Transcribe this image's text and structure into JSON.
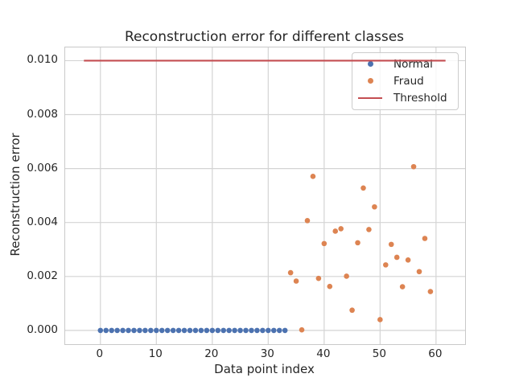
{
  "chart_data": {
    "type": "scatter",
    "title": "Reconstruction error for different classes",
    "xlabel": "Data point index",
    "ylabel": "Reconstruction error",
    "xlim": [
      -6.3,
      65.2
    ],
    "ylim": [
      -0.00051,
      0.01049
    ],
    "xticks": [
      0,
      10,
      20,
      30,
      40,
      50,
      60
    ],
    "xtick_labels": [
      "0",
      "10",
      "20",
      "30",
      "40",
      "50",
      "60"
    ],
    "yticks": [
      0.0,
      0.002,
      0.004,
      0.006,
      0.008,
      0.01
    ],
    "ytick_labels": [
      "0.000",
      "0.002",
      "0.004",
      "0.006",
      "0.008",
      "0.010"
    ],
    "grid": true,
    "legend_position": "upper right",
    "colors": {
      "normal": "#4C72B0",
      "fraud": "#DD8452",
      "threshold": "#C44E52",
      "grid": "#d4d4d4",
      "spine": "#c9c9c9",
      "text": "#262626"
    },
    "series": [
      {
        "name": "Normal",
        "kind": "scatter",
        "color_key": "normal",
        "x": [
          0,
          1,
          2,
          3,
          4,
          5,
          6,
          7,
          8,
          9,
          10,
          11,
          12,
          13,
          14,
          15,
          16,
          17,
          18,
          19,
          20,
          21,
          22,
          23,
          24,
          25,
          26,
          27,
          28,
          29,
          30,
          31,
          32,
          33
        ],
        "y": [
          0,
          0,
          0,
          0,
          0,
          0,
          0,
          0,
          0,
          0,
          0,
          0,
          0,
          0,
          0,
          0,
          0,
          0,
          0,
          0,
          0,
          0,
          0,
          0,
          0,
          0,
          0,
          0,
          0,
          0,
          0,
          0,
          0,
          0
        ]
      },
      {
        "name": "Fraud",
        "kind": "scatter",
        "color_key": "fraud",
        "x": [
          34,
          35,
          36,
          37,
          38,
          39,
          40,
          41,
          42,
          43,
          44,
          45,
          46,
          47,
          48,
          49,
          50,
          51,
          52,
          53,
          54,
          55,
          56,
          57,
          58,
          59
        ],
        "y": [
          0.00214,
          0.00183,
          2e-05,
          0.00407,
          0.00571,
          0.00193,
          0.00322,
          0.00163,
          0.00368,
          0.00377,
          0.00201,
          0.00075,
          0.00325,
          0.00528,
          0.00374,
          0.00458,
          0.0004,
          0.00243,
          0.00319,
          0.00271,
          0.00162,
          0.00261,
          0.00607,
          0.00218,
          0.00341,
          0.00144
        ]
      },
      {
        "name": "Threshold",
        "kind": "line",
        "color_key": "threshold",
        "x": [
          -2.95,
          61.7
        ],
        "y": [
          0.01,
          0.01
        ]
      }
    ]
  }
}
